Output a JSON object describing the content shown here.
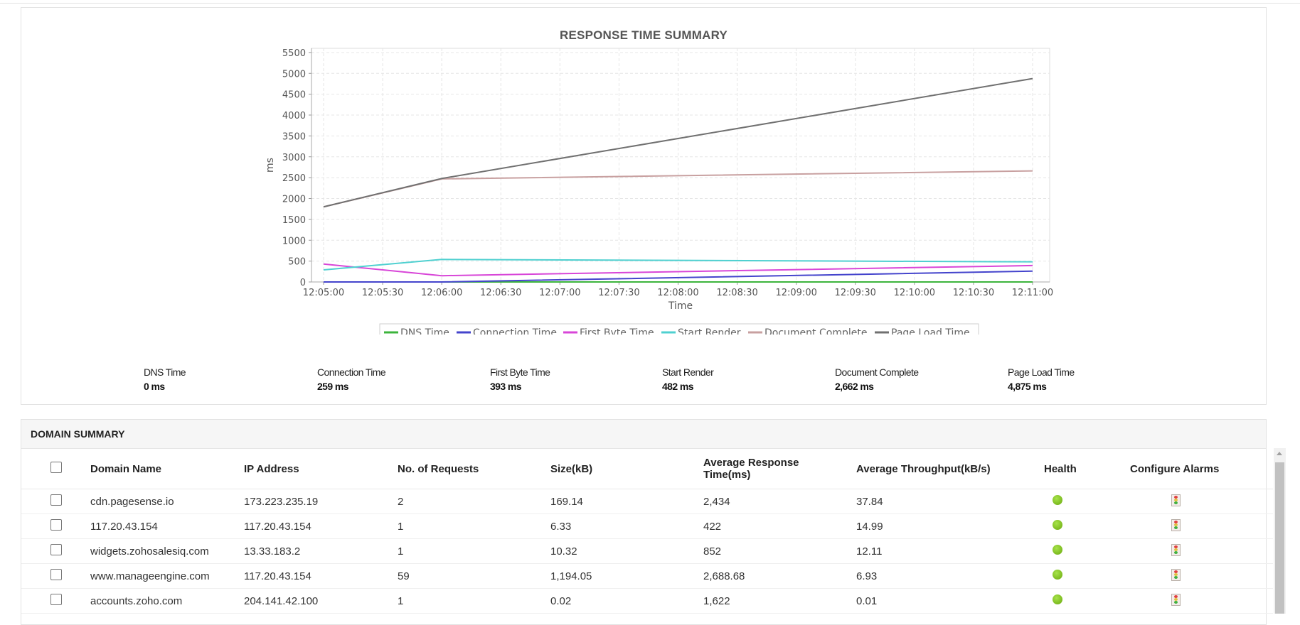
{
  "chart_data": {
    "type": "line",
    "title": "RESPONSE TIME SUMMARY",
    "xlabel": "Time",
    "ylabel": "ms",
    "x_ticks": [
      "12:05:00",
      "12:05:30",
      "12:06:00",
      "12:06:30",
      "12:07:00",
      "12:07:30",
      "12:08:00",
      "12:08:30",
      "12:09:00",
      "12:09:30",
      "12:10:00",
      "12:10:30",
      "12:11:00"
    ],
    "x_seconds": [
      0,
      30,
      60,
      90,
      120,
      150,
      180,
      210,
      240,
      270,
      300,
      330,
      360
    ],
    "y_ticks": [
      0,
      500,
      1000,
      1500,
      2000,
      2500,
      3000,
      3500,
      4000,
      4500,
      5000,
      5500
    ],
    "ylim": [
      0,
      5600
    ],
    "grid": true,
    "legend_position": "bottom",
    "series": [
      {
        "name": "DNS Time",
        "color": "#3cb43c",
        "x": [
          "12:05:00",
          "12:06:00",
          "12:11:00"
        ],
        "values": [
          0,
          0,
          0
        ]
      },
      {
        "name": "Connection Time",
        "color": "#4444cc",
        "x": [
          "12:05:00",
          "12:06:00",
          "12:11:00"
        ],
        "values": [
          0,
          0,
          259
        ]
      },
      {
        "name": "First Byte Time",
        "color": "#d846d8",
        "x": [
          "12:05:00",
          "12:06:00",
          "12:11:00"
        ],
        "values": [
          430,
          150,
          393
        ]
      },
      {
        "name": "Start Render",
        "color": "#4fd0d0",
        "x": [
          "12:05:00",
          "12:06:00",
          "12:11:00"
        ],
        "values": [
          290,
          540,
          482
        ]
      },
      {
        "name": "Document Complete",
        "color": "#c8a0a0",
        "x": [
          "12:05:00",
          "12:06:00",
          "12:11:00"
        ],
        "values": [
          1800,
          2470,
          2662
        ]
      },
      {
        "name": "Page Load Time",
        "color": "#707070",
        "x": [
          "12:05:00",
          "12:06:00",
          "12:11:00"
        ],
        "values": [
          1800,
          2480,
          4875
        ]
      }
    ]
  },
  "summary": [
    {
      "label": "DNS Time",
      "value": "0 ms"
    },
    {
      "label": "Connection Time",
      "value": "259 ms"
    },
    {
      "label": "First Byte Time",
      "value": "393 ms"
    },
    {
      "label": "Start Render",
      "value": "482 ms"
    },
    {
      "label": "Document Complete",
      "value": "2,662 ms"
    },
    {
      "label": "Page Load Time",
      "value": "4,875 ms"
    }
  ],
  "domain_summary": {
    "title": "DOMAIN SUMMARY",
    "columns": {
      "domain": "Domain Name",
      "ip": "IP Address",
      "requests": "No. of Requests",
      "size": "Size(kB)",
      "avg_response_line1": "Average Response",
      "avg_response_line2": "Time(ms)",
      "throughput": "Average Throughput(kB/s)",
      "health": "Health",
      "alarms": "Configure Alarms"
    },
    "rows": [
      {
        "domain": "cdn.pagesense.io",
        "ip": "173.223.235.19",
        "requests": "2",
        "size": "169.14",
        "avg_response": "2,434",
        "throughput": "37.84",
        "health": "green"
      },
      {
        "domain": "117.20.43.154",
        "ip": "117.20.43.154",
        "requests": "1",
        "size": "6.33",
        "avg_response": "422",
        "throughput": "14.99",
        "health": "green"
      },
      {
        "domain": "widgets.zohosalesiq.com",
        "ip": "13.33.183.2",
        "requests": "1",
        "size": "10.32",
        "avg_response": "852",
        "throughput": "12.11",
        "health": "green"
      },
      {
        "domain": "www.manageengine.com",
        "ip": "117.20.43.154",
        "requests": "59",
        "size": "1,194.05",
        "avg_response": "2,688.68",
        "throughput": "6.93",
        "health": "green"
      },
      {
        "domain": "accounts.zoho.com",
        "ip": "204.141.42.100",
        "requests": "1",
        "size": "0.02",
        "avg_response": "1,622",
        "throughput": "0.01",
        "health": "green"
      }
    ]
  }
}
